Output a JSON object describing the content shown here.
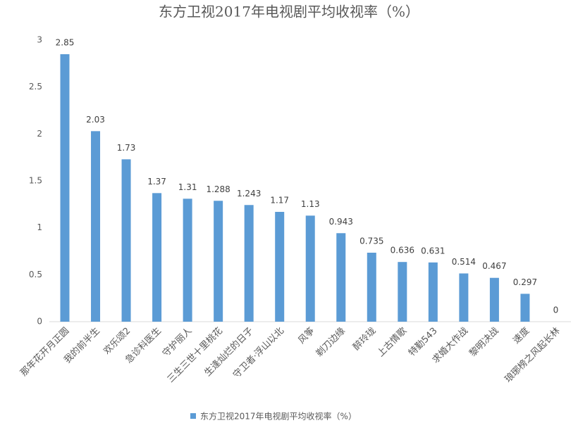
{
  "chart_data": {
    "type": "bar",
    "title": "东方卫视2017年电视剧平均收视率（%）",
    "categories": [
      "那年花开月正圆",
      "我的前半生",
      "欢乐颂2",
      "急诊科医生",
      "守护丽人",
      "三生三世十里桃花",
      "生逢灿烂的日子",
      "守卫者·浮山以北",
      "风筝",
      "剃刀边缘",
      "醉玲珑",
      "上古情歌",
      "特勤543",
      "求婚大作战",
      "黎明决战",
      "速度",
      "琅琊榜之风起长林"
    ],
    "series": [
      {
        "name": "东方卫视2017年电视剧平均收视率（%）",
        "color": "#5b9bd5",
        "values": [
          2.85,
          2.03,
          1.73,
          1.37,
          1.31,
          1.288,
          1.243,
          1.17,
          1.13,
          0.943,
          0.735,
          0.636,
          0.631,
          0.514,
          0.467,
          0.297,
          0
        ]
      }
    ],
    "ylim": [
      0,
      3
    ],
    "yticks": [
      0,
      0.5,
      1,
      1.5,
      2,
      2.5,
      3
    ],
    "grid": false,
    "legend": "bottom"
  }
}
